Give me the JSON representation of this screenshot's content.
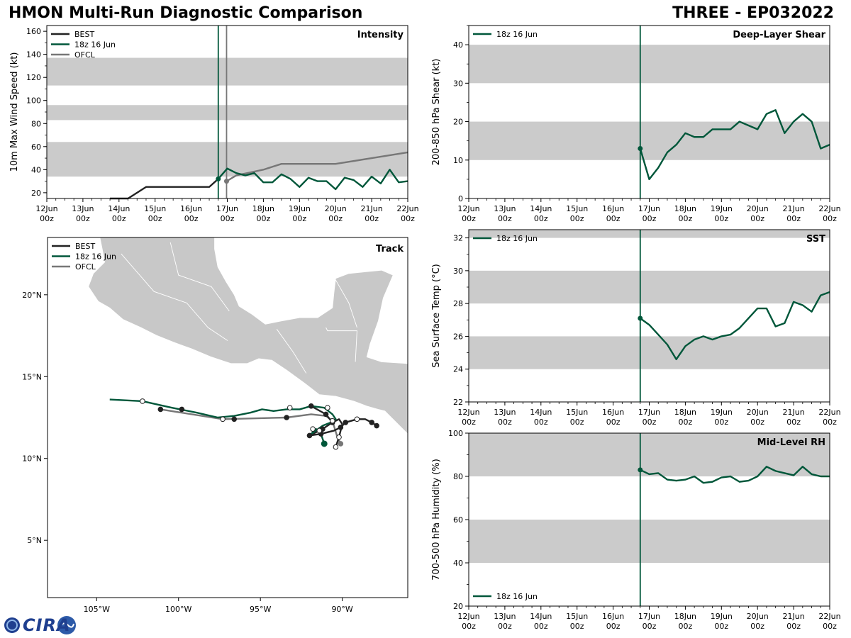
{
  "header": {
    "title_left": "HMON Multi-Run Diagnostic Comparison",
    "title_right": "THREE - EP032022"
  },
  "logo": {
    "text": "CIRA"
  },
  "colors": {
    "best": "#222222",
    "run": "#00573a",
    "ofcl": "#777777",
    "band": "#cbcbcb",
    "land": "#c8c8c8"
  },
  "time_axis": {
    "days": [
      "12Jun",
      "13Jun",
      "14Jun",
      "15Jun",
      "16Jun",
      "17Jun",
      "18Jun",
      "19Jun",
      "20Jun",
      "21Jun",
      "22Jun"
    ],
    "hour_label": "00z",
    "init_time_day": 4.75,
    "ofcl_time_day": 4.98
  },
  "chart_data": [
    {
      "type": "line",
      "id": "intensity",
      "title": "Intensity",
      "ylabel": "10m Max Wind Speed (kt)",
      "ylim": [
        15,
        165
      ],
      "yticks": [
        20,
        40,
        60,
        80,
        100,
        120,
        140,
        160
      ],
      "bands": [
        [
          34,
          64
        ],
        [
          83,
          96
        ],
        [
          113,
          137
        ]
      ],
      "legend": [
        "BEST",
        "18z 16 Jun",
        "OFCL"
      ],
      "series": [
        {
          "name": "BEST",
          "style": "best",
          "x": [
            1.75,
            2.25,
            2.75,
            3.0,
            3.25,
            3.5,
            3.75,
            4.0,
            4.25,
            4.5,
            4.75
          ],
          "y": [
            15,
            15,
            25,
            25,
            25,
            25,
            25,
            25,
            25,
            25,
            32
          ]
        },
        {
          "name": "18z 16 Jun",
          "style": "run",
          "x": [
            4.75,
            5.0,
            5.25,
            5.5,
            5.75,
            6.0,
            6.25,
            6.5,
            6.75,
            7.0,
            7.25,
            7.5,
            7.75,
            8.0,
            8.25,
            8.5,
            8.75,
            9.0,
            9.25,
            9.5,
            9.75,
            10.0
          ],
          "y": [
            32,
            41,
            37,
            35,
            37,
            29,
            29,
            36,
            32,
            25,
            33,
            30,
            30,
            23,
            33,
            31,
            25,
            34,
            28,
            40,
            29,
            30
          ]
        },
        {
          "name": "OFCL",
          "style": "ofcl",
          "x": [
            4.98,
            5.25,
            6.0,
            6.5,
            7.0,
            7.5,
            8.0,
            9.0,
            10.0
          ],
          "y": [
            30,
            35,
            40,
            45,
            45,
            45,
            45,
            50,
            55
          ]
        }
      ]
    },
    {
      "type": "line",
      "id": "shear",
      "title": "Deep-Layer Shear",
      "ylabel": "200-850 hPa Shear (kt)",
      "ylim": [
        0,
        45
      ],
      "yticks": [
        0,
        10,
        20,
        30,
        40
      ],
      "bands": [
        [
          10,
          20
        ],
        [
          30,
          40
        ]
      ],
      "legend": [
        "18z 16 Jun"
      ],
      "series": [
        {
          "name": "18z 16 Jun",
          "style": "run",
          "x": [
            4.75,
            5.0,
            5.25,
            5.5,
            5.75,
            6.0,
            6.25,
            6.5,
            6.75,
            7.0,
            7.25,
            7.5,
            7.75,
            8.0,
            8.25,
            8.5,
            8.75,
            9.0,
            9.25,
            9.5,
            9.75,
            10.0
          ],
          "y": [
            13,
            5,
            8,
            12,
            14,
            17,
            16,
            16,
            18,
            18,
            18,
            20,
            19,
            18,
            22,
            23,
            17,
            20,
            22,
            20,
            13,
            14
          ]
        }
      ]
    },
    {
      "type": "line",
      "id": "sst",
      "title": "SST",
      "ylabel": "Sea Surface Temp (°C)",
      "ylim": [
        22,
        32.5
      ],
      "yticks": [
        22,
        24,
        26,
        28,
        30,
        32
      ],
      "bands": [
        [
          24,
          26
        ],
        [
          28,
          30
        ],
        [
          32,
          32.5
        ]
      ],
      "legend": [
        "18z 16 Jun"
      ],
      "series": [
        {
          "name": "18z 16 Jun",
          "style": "run",
          "x": [
            4.75,
            5.0,
            5.25,
            5.5,
            5.75,
            6.0,
            6.25,
            6.5,
            6.75,
            7.0,
            7.25,
            7.5,
            7.75,
            8.0,
            8.25,
            8.5,
            8.75,
            9.0,
            9.25,
            9.5,
            9.75,
            10.0
          ],
          "y": [
            27.1,
            26.7,
            26.1,
            25.5,
            24.6,
            25.4,
            25.8,
            26.0,
            25.8,
            26.0,
            26.1,
            26.5,
            27.1,
            27.7,
            27.7,
            26.6,
            26.8,
            28.1,
            27.9,
            27.5,
            28.5,
            28.7
          ]
        }
      ]
    },
    {
      "type": "line",
      "id": "rh",
      "title": "Mid-Level RH",
      "ylabel": "700-500 hPa Humidity (%)",
      "ylim": [
        20,
        100
      ],
      "yticks": [
        20,
        40,
        60,
        80,
        100
      ],
      "bands": [
        [
          40,
          60
        ],
        [
          80,
          100
        ]
      ],
      "legend": [
        "18z 16 Jun"
      ],
      "legend_position": "bottom-left",
      "series": [
        {
          "name": "18z 16 Jun",
          "style": "run",
          "x": [
            4.75,
            5.0,
            5.25,
            5.5,
            5.75,
            6.0,
            6.25,
            6.5,
            6.75,
            7.0,
            7.25,
            7.5,
            7.75,
            8.0,
            8.25,
            8.5,
            8.75,
            9.0,
            9.25,
            9.5,
            9.75,
            10.0
          ],
          "y": [
            83,
            81,
            81.5,
            78.5,
            78,
            78.5,
            80,
            77,
            77.5,
            79.5,
            80,
            77.5,
            78,
            80,
            84.5,
            82.5,
            81.5,
            80.5,
            84.5,
            81,
            80,
            80
          ]
        }
      ]
    },
    {
      "type": "scatter",
      "id": "track",
      "title": "Track",
      "xlim": [
        -108,
        -86
      ],
      "ylim": [
        1.5,
        23.5
      ],
      "xticks": [
        -105,
        -100,
        -95,
        -90
      ],
      "xtick_labels": [
        "105°W",
        "100°W",
        "95°W",
        "90°W"
      ],
      "yticks": [
        5,
        10,
        15,
        20
      ],
      "ytick_labels": [
        "5°N",
        "10°N",
        "15°N",
        "20°N"
      ],
      "legend": [
        "BEST",
        "18z 16 Jun",
        "OFCL"
      ],
      "series": [
        {
          "name": "BEST",
          "style": "best",
          "lon": [
            -87.9,
            -88.2,
            -88.6,
            -89.1,
            -89.8,
            -90.1,
            -90.5,
            -91.3,
            -92.0,
            -91.2,
            -90.6,
            -90.2,
            -90.0
          ],
          "lat": [
            12.0,
            12.2,
            12.4,
            12.4,
            12.2,
            11.9,
            11.7,
            11.5,
            11.4,
            11.8,
            12.2,
            12.4,
            12.1
          ],
          "markers": [
            [
              -87.9,
              12.0,
              "filled"
            ],
            [
              -88.2,
              12.2,
              "filled"
            ],
            [
              -89.1,
              12.4,
              "open"
            ],
            [
              -89.8,
              12.2,
              "filled"
            ],
            [
              -90.1,
              11.9,
              "filled"
            ],
            [
              -90.2,
              11.3,
              "open"
            ],
            [
              -90.4,
              10.7,
              "open"
            ],
            [
              -91.3,
              11.5,
              "filled"
            ],
            [
              -92.0,
              11.4,
              "filled"
            ],
            [
              -91.2,
              11.8,
              "filled"
            ],
            [
              -90.6,
              12.2,
              "filled"
            ],
            [
              -91.0,
              12.7,
              "filled"
            ],
            [
              -91.9,
              13.2,
              "filled"
            ],
            [
              -93.4,
              12.5,
              "filled"
            ],
            [
              -96.6,
              12.4,
              "filled"
            ],
            [
              -99.8,
              13.0,
              "filled"
            ],
            [
              -101.1,
              13.0,
              "filled"
            ]
          ],
          "path2": [
            [
              -90.0,
              12.1
            ],
            [
              -90.2,
              11.3
            ],
            [
              -90.4,
              10.7
            ]
          ],
          "path3": [
            [
              -90.6,
              12.2
            ],
            [
              -91.0,
              12.7
            ],
            [
              -91.9,
              13.2
            ]
          ]
        },
        {
          "name": "18z 16 Jun",
          "style": "run",
          "lon": [
            -91.1,
            -91.3,
            -91.6,
            -91.9,
            -91.2,
            -90.7,
            -90.4,
            -90.6,
            -91.1,
            -91.9,
            -92.6,
            -93.4,
            -94.2,
            -94.9,
            -95.6,
            -96.6,
            -97.6,
            -98.9,
            -100.4,
            -102.2,
            -104.2
          ],
          "lat": [
            10.9,
            11.5,
            11.8,
            11.5,
            12.0,
            12.2,
            12.4,
            12.7,
            13.1,
            13.2,
            13.0,
            13.0,
            12.9,
            13.0,
            12.8,
            12.6,
            12.5,
            12.8,
            13.1,
            13.5,
            13.6
          ],
          "markers": [
            [
              -91.1,
              10.9,
              "end"
            ]
          ]
        },
        {
          "name": "OFCL",
          "style": "ofcl",
          "lon": [
            -90.1,
            -90.3,
            -90.6,
            -91.0,
            -91.9,
            -93.4,
            -97.3,
            -101.1
          ],
          "lat": [
            10.9,
            11.3,
            12.3,
            12.6,
            12.7,
            12.5,
            12.4,
            13.0
          ],
          "markers": [
            [
              -90.1,
              10.9,
              "filled"
            ],
            [
              -90.6,
              12.3,
              "open"
            ],
            [
              -90.9,
              13.1,
              "open"
            ],
            [
              -91.8,
              11.8,
              "open"
            ],
            [
              -91.4,
              11.7,
              "open"
            ],
            [
              -93.2,
              13.1,
              "open"
            ],
            [
              -97.3,
              12.4,
              "open"
            ],
            [
              -102.2,
              13.5,
              "open"
            ]
          ]
        }
      ],
      "land": [
        [
          [
            -108,
            23.5
          ],
          [
            -104.8,
            23.5
          ],
          [
            -104.5,
            22.0
          ],
          [
            -105.2,
            21.3
          ],
          [
            -105.5,
            20.5
          ],
          [
            -104.9,
            19.6
          ],
          [
            -104.2,
            19.2
          ],
          [
            -103.4,
            18.5
          ],
          [
            -102.3,
            18.0
          ],
          [
            -101.3,
            17.5
          ],
          [
            -100.3,
            17.1
          ],
          [
            -99.2,
            16.7
          ],
          [
            -98.0,
            16.2
          ],
          [
            -96.8,
            15.8
          ],
          [
            -95.8,
            15.8
          ],
          [
            -95.1,
            16.1
          ],
          [
            -94.3,
            16.0
          ],
          [
            -93.4,
            15.4
          ],
          [
            -92.3,
            14.6
          ],
          [
            -91.4,
            13.9
          ],
          [
            -90.4,
            13.8
          ],
          [
            -89.3,
            13.5
          ],
          [
            -88.5,
            13.2
          ],
          [
            -87.8,
            13.0
          ],
          [
            -87.4,
            12.9
          ],
          [
            -86.9,
            12.4
          ],
          [
            -86.3,
            11.8
          ],
          [
            -86,
            11.5
          ],
          [
            -86,
            15.8
          ],
          [
            -87.6,
            15.9
          ],
          [
            -88.5,
            16.2
          ],
          [
            -88.3,
            17.0
          ],
          [
            -87.8,
            18.4
          ],
          [
            -87.5,
            19.8
          ],
          [
            -86.9,
            21.2
          ],
          [
            -87.6,
            21.5
          ],
          [
            -88.6,
            21.4
          ],
          [
            -89.6,
            21.3
          ],
          [
            -90.4,
            21.0
          ],
          [
            -90.5,
            20.2
          ],
          [
            -90.6,
            19.2
          ],
          [
            -91.5,
            18.6
          ],
          [
            -92.6,
            18.6
          ],
          [
            -93.7,
            18.4
          ],
          [
            -94.7,
            18.2
          ],
          [
            -95.5,
            18.8
          ],
          [
            -96.3,
            19.3
          ],
          [
            -96.6,
            20.0
          ],
          [
            -97.1,
            20.8
          ],
          [
            -97.6,
            21.7
          ],
          [
            -97.8,
            22.8
          ],
          [
            -97.8,
            23.5
          ],
          [
            -108,
            23.5
          ]
        ]
      ]
    }
  ]
}
